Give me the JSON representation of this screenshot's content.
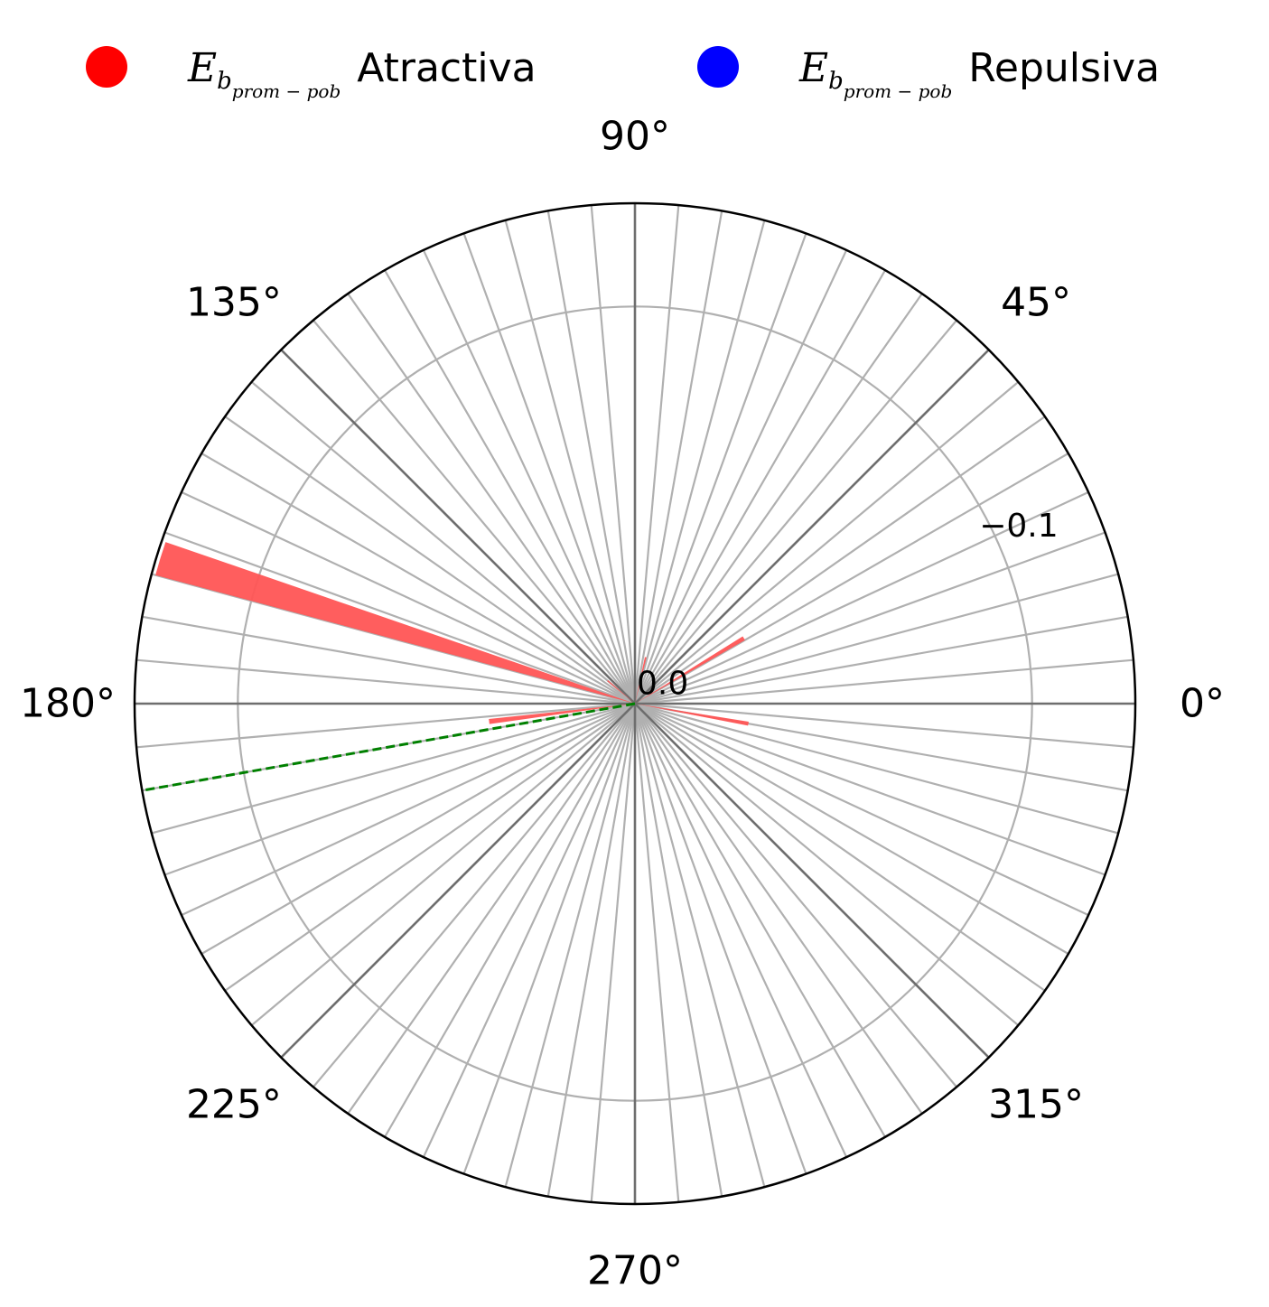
{
  "chart_data": {
    "type": "polar-bar",
    "title": "",
    "angle_ticks": [
      {
        "deg": 0,
        "label": "0°"
      },
      {
        "deg": 45,
        "label": "45°"
      },
      {
        "deg": 90,
        "label": "90°"
      },
      {
        "deg": 135,
        "label": "135°"
      },
      {
        "deg": 180,
        "label": "180°"
      },
      {
        "deg": 225,
        "label": "225°"
      },
      {
        "deg": 270,
        "label": "270°"
      },
      {
        "deg": 315,
        "label": "315°"
      }
    ],
    "radial_ticks": [
      {
        "value": 0.0,
        "label": "0.0"
      },
      {
        "value": -0.1,
        "label": "−0.1"
      }
    ],
    "radial_range": [
      0,
      -0.126
    ],
    "angular_gridline_step_deg": 5,
    "legend": [
      {
        "symbol": "E",
        "subscript": "b",
        "subsubscript": "prom − pob",
        "label": "Atractiva",
        "color": "#ff0000"
      },
      {
        "symbol": "E",
        "subscript": "b",
        "subsubscript": "prom − pob",
        "label": "Repulsiva",
        "color": "#0000ff"
      }
    ],
    "series": [
      {
        "name": "Atractiva",
        "color": "#ff5555",
        "bars": [
          {
            "angle_deg": 163,
            "width_deg": 4,
            "value": -0.125
          },
          {
            "angle_deg": 31,
            "width_deg": 2,
            "value": -0.032
          },
          {
            "angle_deg": 77,
            "width_deg": 2,
            "value": -0.012
          },
          {
            "angle_deg": 350,
            "width_deg": 2,
            "value": -0.029
          },
          {
            "angle_deg": 187,
            "width_deg": 2,
            "value": -0.037
          },
          {
            "angle_deg": 140,
            "width_deg": 2,
            "value": -0.009
          }
        ]
      }
    ],
    "reference_line": {
      "angle_deg": 190,
      "color": "#008000",
      "style": "dashed"
    }
  }
}
